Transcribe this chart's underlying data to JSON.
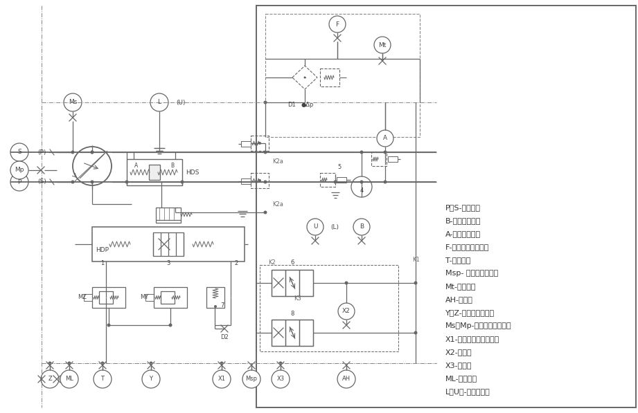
{
  "bg": "#ffffff",
  "lc": "#666666",
  "lc_dash": "#888888",
  "lw": 0.9,
  "lw_thick": 1.3,
  "legend": [
    "P、S-高压油口",
    "B-补油泵吸油口",
    "A-补油泵排油口",
    "F-补油泵流量注入口",
    "T-油筱油口",
    "Msp- 补油压力测压口",
    "Mt-测油温口",
    "AH-接油筱",
    "Y、Z-控制压力测压口",
    "Ms、Mp-高压油路测压油口",
    "X1-马达控制压力取压口",
    "X2-测压口",
    "X3-测压口",
    "ML-微调油口",
    "L（U）-壳体回油口"
  ]
}
